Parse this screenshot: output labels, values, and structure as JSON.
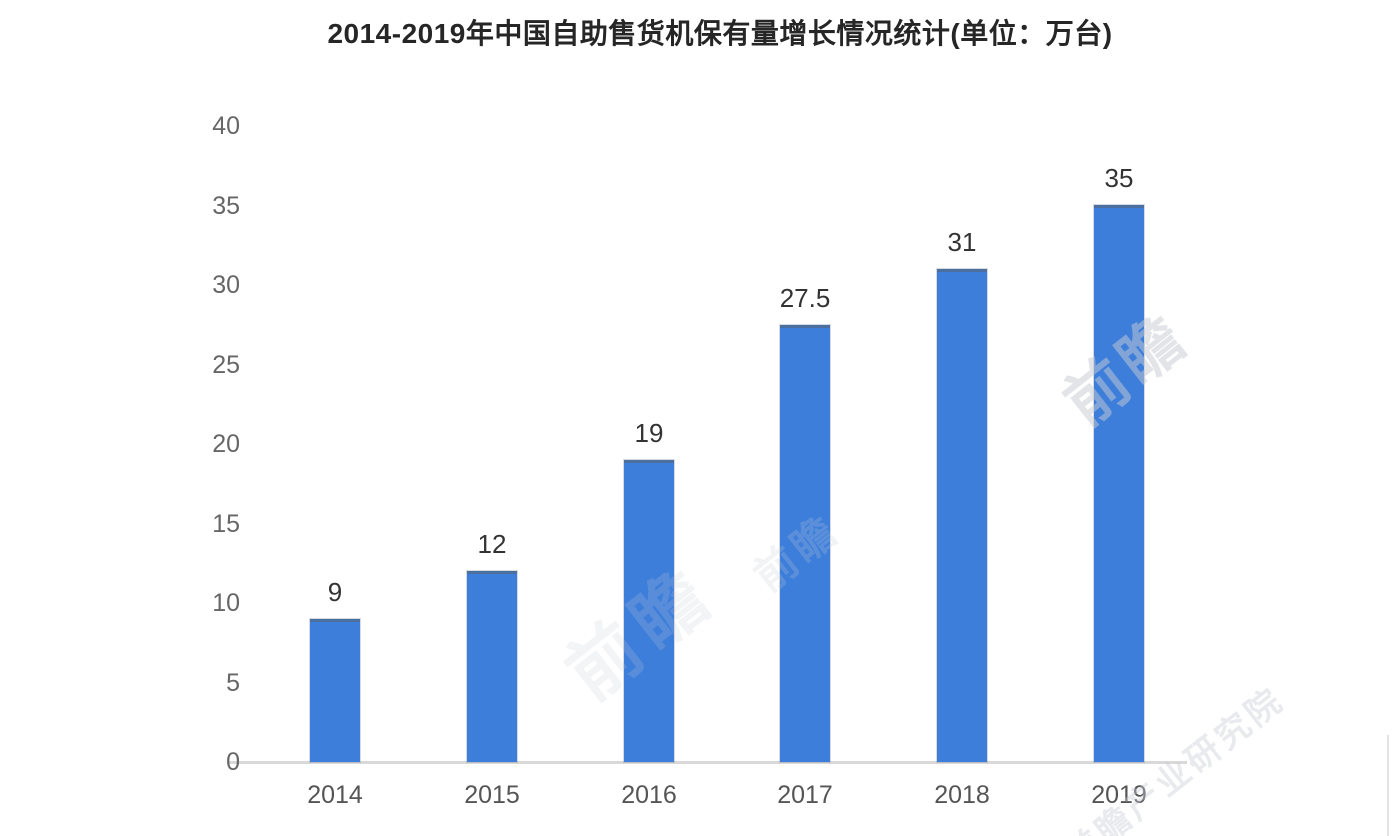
{
  "title": "2014-2019年中国自助售货机保有量增长情况统计(单位：万台)",
  "colors": {
    "bar": "#3d7edb",
    "bar_cap": "#58626e",
    "axis_line": "#d9d9d9",
    "title_text": "#262626",
    "tick_text": "#666666",
    "value_text": "#333333",
    "xlabel_text": "#555555",
    "watermark": "#c7cbd3",
    "background": "#ffffff"
  },
  "watermark": {
    "brand": "前瞻",
    "full": "前瞻产业研究院"
  },
  "chart_data": {
    "type": "bar",
    "title": "2014-2019年中国自助售货机保有量增长情况统计(单位：万台)",
    "unit": "万台",
    "categories": [
      "2014",
      "2015",
      "2016",
      "2017",
      "2018",
      "2019"
    ],
    "values": [
      9,
      12,
      19,
      27.5,
      31,
      35
    ],
    "value_labels": [
      "9",
      "12",
      "19",
      "27.5",
      "31",
      "35"
    ],
    "xlabel": "",
    "ylabel": "",
    "ylim": [
      0,
      40
    ],
    "yticks": [
      0,
      5,
      10,
      15,
      20,
      25,
      30,
      35,
      40
    ],
    "grid": false,
    "legend": null,
    "bar_color": "#3d7edb"
  }
}
